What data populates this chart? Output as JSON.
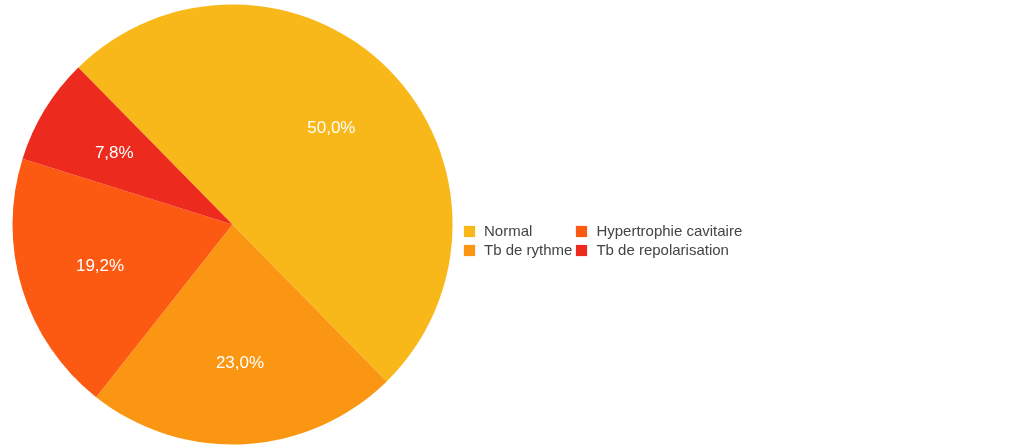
{
  "chart_data": {
    "type": "pie",
    "categories": [
      "Normal",
      "Tb de rythme",
      "Hypertrophie cavitaire",
      "Tb de repolarisation"
    ],
    "values": [
      50.0,
      23.0,
      19.2,
      7.8
    ],
    "colors": [
      "#f8b819",
      "#fb9613",
      "#fc5a12",
      "#ec2a1e"
    ],
    "value_labels": [
      "50,0%",
      "23,0%",
      "19,2%",
      "7,8%"
    ],
    "legend": "right"
  }
}
